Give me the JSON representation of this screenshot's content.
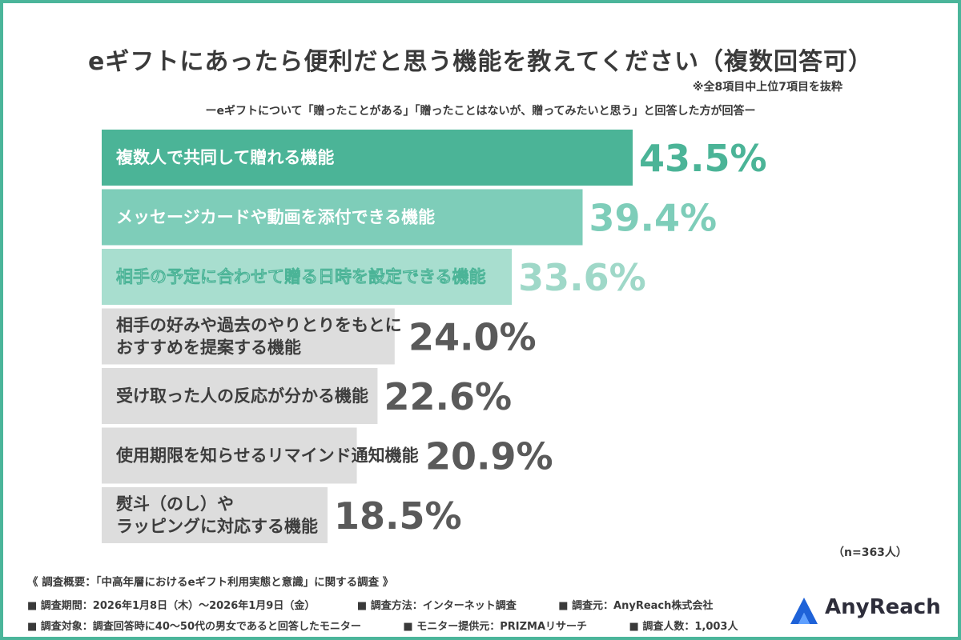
{
  "title": "eギフトにあったら便利だと思う機能を教えてください（複数回答可）",
  "note": "※全8項目中上位7項目を抜粋",
  "subtitle": "ーeギフトについて「贈ったことがある」「贈ったことはないが、贈ってみたいと思う」と回答した方が回答ー",
  "sample": "（n=363人）",
  "survey": {
    "overview": "《 調査概要：「中高年層におけるeギフト利用実態と意識」に関する調査 》",
    "period": "■ 調査期間：2026年1月8日（木）〜2026年1月9日（金）",
    "method": "■ 調査方法：インターネット調査",
    "organizer": "■ 調査元：AnyReach株式会社",
    "target": "■ 調査対象：調査回答時に40〜50代の男女であると回答したモニター",
    "provider": "■ モニター提供元：PRIZMAリサーチ",
    "count": "■ 調査人数：1,003人"
  },
  "logo": {
    "text": "AnyReach"
  },
  "chart_data": {
    "type": "bar",
    "orientation": "horizontal",
    "unit": "%",
    "categories": [
      "複数人で共同して贈れる機能",
      "メッセージカードや動画を添付できる機能",
      "相手の予定に合わせて贈る日時を設定できる機能",
      "相手の好みや過去のやりとりをもとに\nおすすめを提案する機能",
      "受け取った人の反応が分かる機能",
      "使用期限を知らせるリマインド通知機能",
      "熨斗（のし）や\nラッピングに対応する機能"
    ],
    "values": [
      43.5,
      39.4,
      33.6,
      24.0,
      22.6,
      20.9,
      18.5
    ],
    "value_labels": [
      "43.5%",
      "39.4%",
      "33.6%",
      "24.0%",
      "22.6%",
      "20.9%",
      "18.5%"
    ],
    "colors": [
      "#4bb497",
      "#7ecdb9",
      "#a8decf",
      "#dddddd",
      "#dddddd",
      "#dddddd",
      "#dddddd"
    ],
    "value_colors": [
      "#4bb497",
      "#7ecdb9",
      "#9fd8c8",
      "#5a5a5a",
      "#5a5a5a",
      "#5a5a5a",
      "#5a5a5a"
    ]
  }
}
